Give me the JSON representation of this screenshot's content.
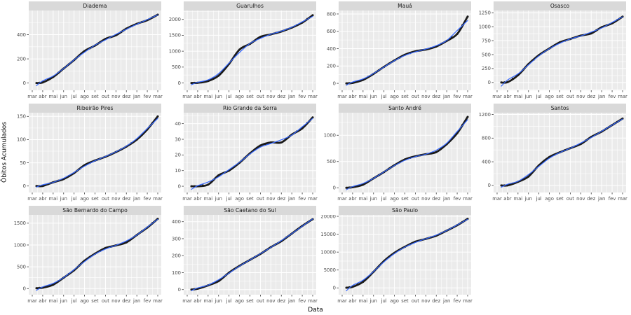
{
  "chart_data": {
    "type": "line",
    "xlabel": "Data",
    "ylabel": "Óbitos Acumulados",
    "x_tick_labels": [
      "mar",
      "abr",
      "mai",
      "jun",
      "jul",
      "ago",
      "set",
      "out",
      "nov",
      "dez",
      "jan",
      "fev",
      "mar"
    ],
    "grid": true,
    "legend": "none",
    "layers": [
      {
        "name": "observed-cumulative-deaths",
        "style": "points",
        "color": "#1A1A1A"
      },
      {
        "name": "smooth-fit",
        "style": "line",
        "color": "#3366FF"
      }
    ],
    "facets": [
      {
        "title": "Diadema",
        "yticks": [
          0,
          200,
          400
        ],
        "ylim": [
          -60,
          600
        ],
        "values": [
          0,
          5,
          50,
          120,
          190,
          265,
          310,
          365,
          395,
          450,
          490,
          520,
          565
        ]
      },
      {
        "title": "Guarulhos",
        "yticks": [
          0,
          500,
          1000,
          1500,
          2000
        ],
        "ylim": [
          -230,
          2280
        ],
        "values": [
          0,
          5,
          60,
          230,
          600,
          1050,
          1230,
          1450,
          1530,
          1620,
          1740,
          1900,
          2130
        ]
      },
      {
        "title": "Mauá",
        "yticks": [
          0,
          200,
          400,
          600,
          800
        ],
        "ylim": [
          -80,
          840
        ],
        "values": [
          0,
          5,
          40,
          110,
          190,
          265,
          330,
          370,
          390,
          425,
          490,
          570,
          770
        ]
      },
      {
        "title": "Osasco",
        "yticks": [
          0,
          250,
          500,
          750,
          1000,
          1250
        ],
        "ylim": [
          -140,
          1290
        ],
        "values": [
          0,
          5,
          130,
          330,
          490,
          610,
          720,
          780,
          840,
          880,
          990,
          1060,
          1180
        ]
      },
      {
        "title": "Ribeirão Pires",
        "yticks": [
          0,
          50,
          100,
          150
        ],
        "ylim": [
          -14,
          158
        ],
        "values": [
          0,
          0,
          8,
          15,
          28,
          45,
          55,
          63,
          73,
          85,
          100,
          122,
          150
        ]
      },
      {
        "title": "Rio Grande da Serra",
        "yticks": [
          0,
          10,
          20,
          30,
          40
        ],
        "ylim": [
          -4,
          47
        ],
        "values": [
          0,
          0,
          1,
          7,
          10,
          15,
          21,
          26,
          28,
          28,
          33,
          37,
          44
        ]
      },
      {
        "title": "Santo André",
        "yticks": [
          0,
          500,
          1000
        ],
        "ylim": [
          -90,
          1430
        ],
        "values": [
          0,
          10,
          60,
          180,
          300,
          430,
          540,
          600,
          640,
          680,
          830,
          1040,
          1350
        ]
      },
      {
        "title": "Santos",
        "yticks": [
          0,
          400,
          800,
          1200
        ],
        "ylim": [
          -120,
          1230
        ],
        "values": [
          0,
          0,
          60,
          150,
          340,
          480,
          560,
          630,
          700,
          820,
          910,
          1020,
          1130
        ]
      },
      {
        "title": "São Bernardo do Campo",
        "yticks": [
          0,
          500,
          1000,
          1500
        ],
        "ylim": [
          -140,
          1690
        ],
        "values": [
          10,
          20,
          90,
          250,
          420,
          640,
          800,
          930,
          990,
          1060,
          1230,
          1400,
          1600
        ]
      },
      {
        "title": "São Caetano do Sul",
        "yticks": [
          0,
          100,
          200,
          300,
          400
        ],
        "ylim": [
          -30,
          440
        ],
        "values": [
          0,
          5,
          25,
          50,
          100,
          140,
          175,
          210,
          250,
          285,
          330,
          375,
          415
        ]
      },
      {
        "title": "São Paulo",
        "yticks": [
          0,
          5000,
          10000,
          15000,
          20000
        ],
        "ylim": [
          -1900,
          20400
        ],
        "values": [
          50,
          300,
          1700,
          4500,
          7500,
          9800,
          11500,
          12900,
          13700,
          14600,
          16000,
          17500,
          19300
        ]
      }
    ]
  },
  "style": {
    "panel_bg": "#EBEBEB",
    "strip_bg": "#D9D9D9",
    "grid_color": "#FFFFFF",
    "tick_mark_color": "#333333",
    "tick_text_color": "#4D4D4D",
    "strip_text_color": "#1A1A1A",
    "point_color": "#1A1A1A",
    "smooth_color": "#3366FF"
  }
}
